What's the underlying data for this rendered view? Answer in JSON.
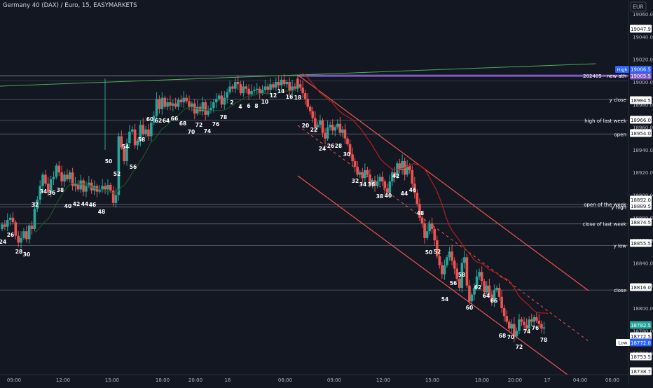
{
  "header": {
    "title": "Germany 40 (DAX) / Euro, 15, EASYMARKETS",
    "currency": "EUR"
  },
  "colors": {
    "bg": "#131722",
    "up": "#26a69a",
    "down": "#ef5350",
    "axis_text": "#b2b5be",
    "line": "#d1d4dc",
    "ath": "#7e57c2",
    "trend": "#4caf50",
    "channel": "#ef5350",
    "ma": "#b71c1c",
    "tag_bg": "#ffffff",
    "tag_text": "#131722",
    "last_price": "#26a69a"
  },
  "chart_data": {
    "type": "candlestick",
    "title": "Germany 40 (DAX) / Euro, 15, EASYMARKETS",
    "yaxis_label": "EUR",
    "ylim": [
      18736,
      19068
    ],
    "y_ticks": [
      19060,
      19040,
      19020,
      19000,
      18980,
      18960,
      18940,
      18920,
      18900,
      18880,
      18860,
      18840,
      18820,
      18800,
      18780,
      18760
    ],
    "x_tick_labels": [
      "09:00",
      "12:00",
      "15:00",
      "18:00",
      "20:00",
      "16",
      "06:00",
      "09:00",
      "12:00",
      "15:00",
      "18:00",
      "20:00",
      "17",
      "04:00",
      "06:00"
    ],
    "price_tags": [
      "19047.9",
      "19005.5",
      "18984.5",
      "18966.0",
      "18954.0",
      "18892.0",
      "18889.5",
      "18874.5",
      "18855.5",
      "18816.0",
      "18782.5",
      "18772.5",
      "18772.0",
      "18753.5",
      "18738.7"
    ],
    "high_tag": {
      "label": "High",
      "value": "19006.5"
    },
    "low_tag": {
      "label": "Low",
      "value": "18772.0"
    },
    "last_price": "18782.5",
    "levels": [
      {
        "label": "202405 - new ath",
        "price": 19005.5
      },
      {
        "label": "y close",
        "price": 18984.5
      },
      {
        "label": "high of last week",
        "price": 18966.0
      },
      {
        "label": "open",
        "price": 18954.0
      },
      {
        "label": "open of the week",
        "price": 18892.0
      },
      {
        "label": "y high",
        "price": 18889.5
      },
      {
        "label": "close of last week",
        "price": 18874.5
      },
      {
        "label": "y low",
        "price": 18855.5
      },
      {
        "label": "close",
        "price": 18816.0
      }
    ],
    "segment1_close": [
      18874,
      18872,
      18878,
      18880,
      18876,
      18864,
      18858,
      18862,
      18868,
      18861,
      18873,
      18870,
      18888,
      18896,
      18908,
      18918,
      18910,
      18902,
      18914,
      18916,
      18926,
      18920,
      18912,
      18918,
      18914,
      18920,
      18908,
      18910,
      18905,
      18913,
      18903,
      18908,
      18911,
      18904,
      18908,
      18903,
      18905,
      18908,
      18905,
      18909,
      18904,
      18893,
      18900,
      18952,
      18942,
      18930,
      18946,
      18956,
      18958,
      18944,
      18948,
      18962,
      18954,
      18958,
      18952,
      18964,
      18970,
      18985,
      18976,
      18986,
      18978,
      18982,
      18979,
      18981,
      18978,
      18984,
      18982,
      18986,
      18983,
      18978,
      18981,
      18972,
      18978,
      18974,
      18982,
      18971,
      18975,
      18977,
      18982,
      18985,
      18988,
      18980,
      18986,
      18991,
      18996,
      18994,
      19000,
      18998,
      18990,
      18996,
      18994,
      18989,
      18992,
      18993,
      18994,
      18990,
      18993,
      18996,
      18993,
      18998,
      18995,
      19000,
      18997,
      19002,
      18998,
      19000,
      18992,
      18996,
      18994,
      19001
    ],
    "segment2_close": [
      18998,
      18995,
      18990,
      18985,
      18978,
      18974,
      18968,
      18960,
      18962,
      18966,
      18955,
      18950,
      18960,
      18962,
      18957,
      18960,
      18963,
      18955,
      18958,
      18950,
      18945,
      18936,
      18930,
      18925,
      18918,
      18920,
      18915,
      18922,
      18918,
      18910,
      18913,
      18908,
      18912,
      18916,
      18912,
      18906,
      18902,
      18912,
      18920,
      18916,
      18928,
      18922,
      18930,
      18918,
      18926,
      18922,
      18910,
      18902,
      18892,
      18880,
      18875,
      18862,
      18868,
      18875,
      18870,
      18860,
      18846,
      18838,
      18830,
      18838,
      18845,
      18850,
      18842,
      18835,
      18826,
      18818,
      18840,
      18845,
      18820,
      18806,
      18812,
      18818,
      18828,
      18832,
      18824,
      18814,
      18820,
      18812,
      18806,
      18816,
      18818,
      18810,
      18800,
      18793,
      18788,
      18782,
      18786,
      18775,
      18780,
      18790,
      18788,
      18785,
      18782,
      18790,
      18788,
      18792,
      18789,
      18786,
      18782,
      18783
    ],
    "swing_labels": [
      {
        "t": "24",
        "x": 4,
        "y": 348
      },
      {
        "t": "26",
        "x": 15,
        "y": 338
      },
      {
        "t": "28",
        "x": 27,
        "y": 362
      },
      {
        "t": "30",
        "x": 38,
        "y": 366
      },
      {
        "t": "32",
        "x": 50,
        "y": 295
      },
      {
        "t": "34",
        "x": 62,
        "y": 276
      },
      {
        "t": "36",
        "x": 74,
        "y": 278
      },
      {
        "t": "38",
        "x": 86,
        "y": 274
      },
      {
        "t": "40",
        "x": 97,
        "y": 297
      },
      {
        "t": "42",
        "x": 109,
        "y": 294
      },
      {
        "t": "44",
        "x": 121,
        "y": 294
      },
      {
        "t": "46",
        "x": 132,
        "y": 295
      },
      {
        "t": "48",
        "x": 145,
        "y": 305
      },
      {
        "t": "50",
        "x": 155,
        "y": 233
      },
      {
        "t": "52",
        "x": 167,
        "y": 251
      },
      {
        "t": "54",
        "x": 179,
        "y": 212
      },
      {
        "t": "56",
        "x": 190,
        "y": 241
      },
      {
        "t": "58",
        "x": 202,
        "y": 202
      },
      {
        "t": "60",
        "x": 214,
        "y": 173
      },
      {
        "t": "62",
        "x": 226,
        "y": 175
      },
      {
        "t": "64",
        "x": 237,
        "y": 175
      },
      {
        "t": "66",
        "x": 249,
        "y": 172
      },
      {
        "t": "68",
        "x": 261,
        "y": 179
      },
      {
        "t": "70",
        "x": 273,
        "y": 191
      },
      {
        "t": "72",
        "x": 284,
        "y": 181
      },
      {
        "t": "74",
        "x": 296,
        "y": 190
      },
      {
        "t": "76",
        "x": 308,
        "y": 180
      },
      {
        "t": "78",
        "x": 319,
        "y": 170
      },
      {
        "t": "2",
        "x": 331,
        "y": 149
      },
      {
        "t": "4",
        "x": 343,
        "y": 155
      },
      {
        "t": "6",
        "x": 355,
        "y": 154
      },
      {
        "t": "8",
        "x": 366,
        "y": 154
      },
      {
        "t": "10",
        "x": 378,
        "y": 148
      },
      {
        "t": "12",
        "x": 390,
        "y": 139
      },
      {
        "t": "14",
        "x": 401,
        "y": 133
      },
      {
        "t": "16",
        "x": 413,
        "y": 141
      },
      {
        "t": "18",
        "x": 425,
        "y": 142
      },
      {
        "t": "20",
        "x": 436,
        "y": 182
      },
      {
        "t": "22",
        "x": 448,
        "y": 188
      },
      {
        "t": "24",
        "x": 460,
        "y": 215
      },
      {
        "t": "26",
        "x": 472,
        "y": 211
      },
      {
        "t": "28",
        "x": 483,
        "y": 211
      },
      {
        "t": "30",
        "x": 495,
        "y": 223
      },
      {
        "t": "32",
        "x": 507,
        "y": 261
      },
      {
        "t": "34",
        "x": 518,
        "y": 266
      },
      {
        "t": "36",
        "x": 530,
        "y": 266
      },
      {
        "t": "38",
        "x": 542,
        "y": 283
      },
      {
        "t": "40",
        "x": 554,
        "y": 282
      },
      {
        "t": "42",
        "x": 565,
        "y": 254
      },
      {
        "t": "44",
        "x": 577,
        "y": 279
      },
      {
        "t": "46",
        "x": 589,
        "y": 274
      },
      {
        "t": "48",
        "x": 600,
        "y": 307
      },
      {
        "t": "50",
        "x": 612,
        "y": 363
      },
      {
        "t": "52",
        "x": 624,
        "y": 362
      },
      {
        "t": "54",
        "x": 635,
        "y": 430
      },
      {
        "t": "56",
        "x": 647,
        "y": 407
      },
      {
        "t": "58",
        "x": 659,
        "y": 395
      },
      {
        "t": "60",
        "x": 670,
        "y": 442
      },
      {
        "t": "62",
        "x": 682,
        "y": 413
      },
      {
        "t": "64",
        "x": 694,
        "y": 425
      },
      {
        "t": "66",
        "x": 705,
        "y": 432
      },
      {
        "t": "68",
        "x": 717,
        "y": 482
      },
      {
        "t": "70",
        "x": 729,
        "y": 484
      },
      {
        "t": "72",
        "x": 741,
        "y": 498
      },
      {
        "t": "74",
        "x": 752,
        "y": 476
      },
      {
        "t": "76",
        "x": 764,
        "y": 471
      },
      {
        "t": "78",
        "x": 776,
        "y": 488
      }
    ]
  }
}
